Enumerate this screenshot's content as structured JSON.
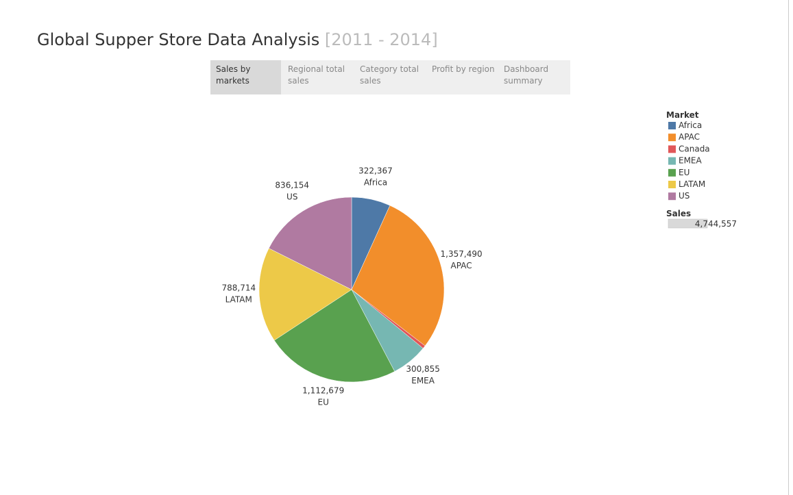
{
  "header": {
    "title": "Global Supper Store Data Analysis",
    "subtitle": "[2011 - 2014]"
  },
  "tabs": [
    "Sales by markets",
    "Regional total sales",
    "Category total sales",
    "Profit by region",
    "Dashboard summary"
  ],
  "active_tab": 0,
  "chart_data": {
    "type": "pie",
    "categories": [
      "Africa",
      "APAC",
      "Canada",
      "EMEA",
      "EU",
      "LATAM",
      "US"
    ],
    "values": [
      322367,
      1357490,
      26298,
      300855,
      1112679,
      788714,
      836154
    ],
    "value_labels": [
      "322,367",
      "1,357,490",
      null,
      "300,855",
      "1,112,679",
      "788,714",
      "836,154"
    ],
    "colors": [
      "#4e79a7",
      "#f28e2b",
      "#e15759",
      "#76b7b2",
      "#59a14f",
      "#edc948",
      "#b07aa1"
    ],
    "legend_title": "Market",
    "size_legend": {
      "title": "Sales",
      "value": 4744557,
      "label": "4,744,557"
    }
  }
}
